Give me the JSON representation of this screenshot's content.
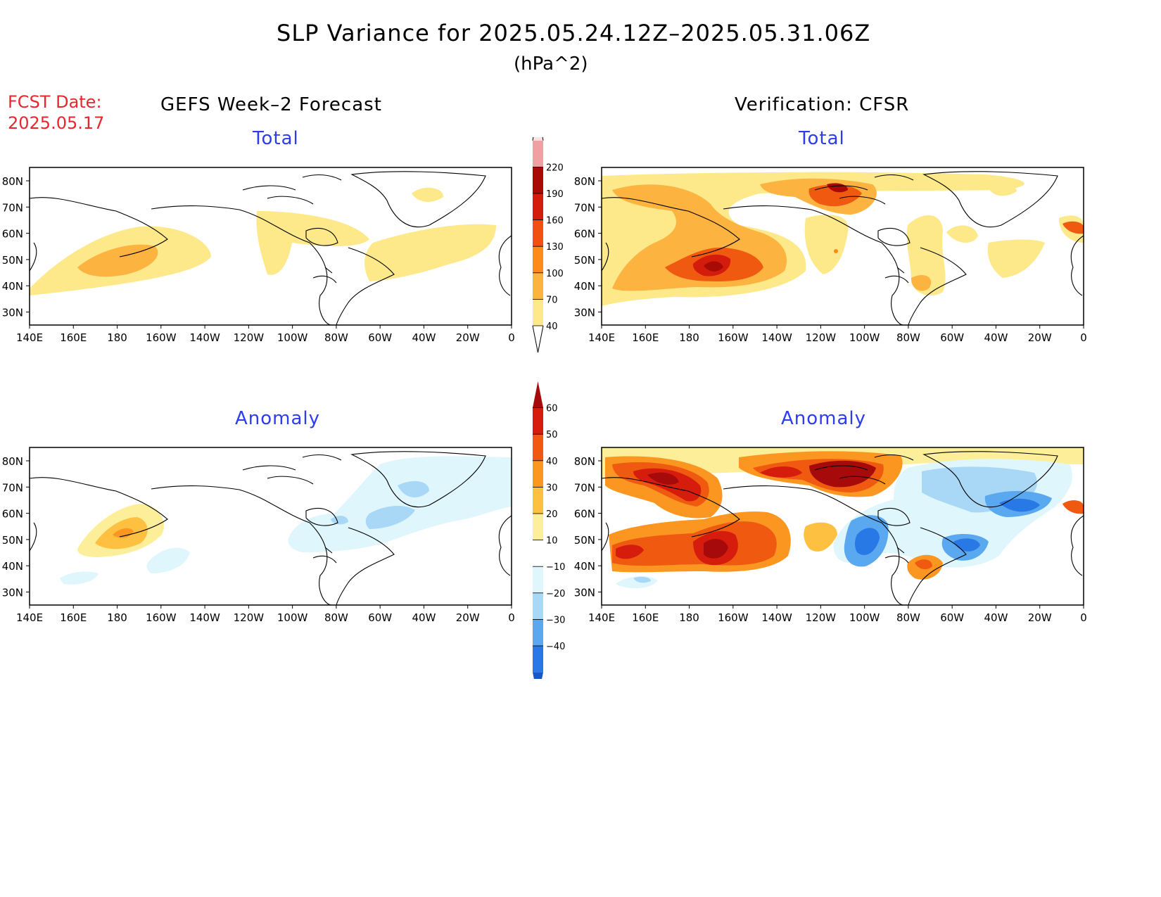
{
  "header": {
    "title": "SLP Variance for 2025.05.24.12Z–2025.05.31.06Z",
    "units": "(hPa^2)"
  },
  "fcst": {
    "line1": "FCST Date:",
    "line2": "2025.05.17"
  },
  "columns": {
    "left": "GEFS Week–2 Forecast",
    "right": "Verification: CFSR"
  },
  "panels": [
    {
      "id": "gefs-total",
      "title": "Total"
    },
    {
      "id": "cfsr-total",
      "title": "Total"
    },
    {
      "id": "gefs-anomaly",
      "title": "Anomaly"
    },
    {
      "id": "cfsr-anomaly",
      "title": "Anomaly"
    }
  ],
  "axes": {
    "x_ticks": [
      "140E",
      "160E",
      "180",
      "160W",
      "140W",
      "120W",
      "100W",
      "80W",
      "60W",
      "40W",
      "20W",
      "0"
    ],
    "y_ticks": [
      "80N",
      "70N",
      "60N",
      "50N",
      "40N",
      "30N"
    ]
  },
  "colorbars": {
    "total": {
      "labels": [
        "40",
        "70",
        "100",
        "130",
        "160",
        "190",
        "220"
      ],
      "colors": [
        "#fde98a",
        "#fdb340",
        "#fd8a1a",
        "#f05010",
        "#d41c0c",
        "#a80a06",
        "#f0a0a2",
        "#fde0e0"
      ]
    },
    "anomaly": {
      "labels": [
        "60",
        "50",
        "40",
        "30",
        "20",
        "10",
        "−10",
        "−20",
        "−30",
        "−40"
      ],
      "colors": [
        "#a60a0a",
        "#d61c0c",
        "#f05a10",
        "#fb9620",
        "#fdc040",
        "#fdef9a",
        "#ffffff",
        "#dff6fd",
        "#a9d8f7",
        "#5aa8ef",
        "#2878e6",
        "#1a56c8"
      ]
    }
  },
  "colors": {
    "title_accent": "#2d3cf0",
    "fcst_text": "#e8262e"
  }
}
